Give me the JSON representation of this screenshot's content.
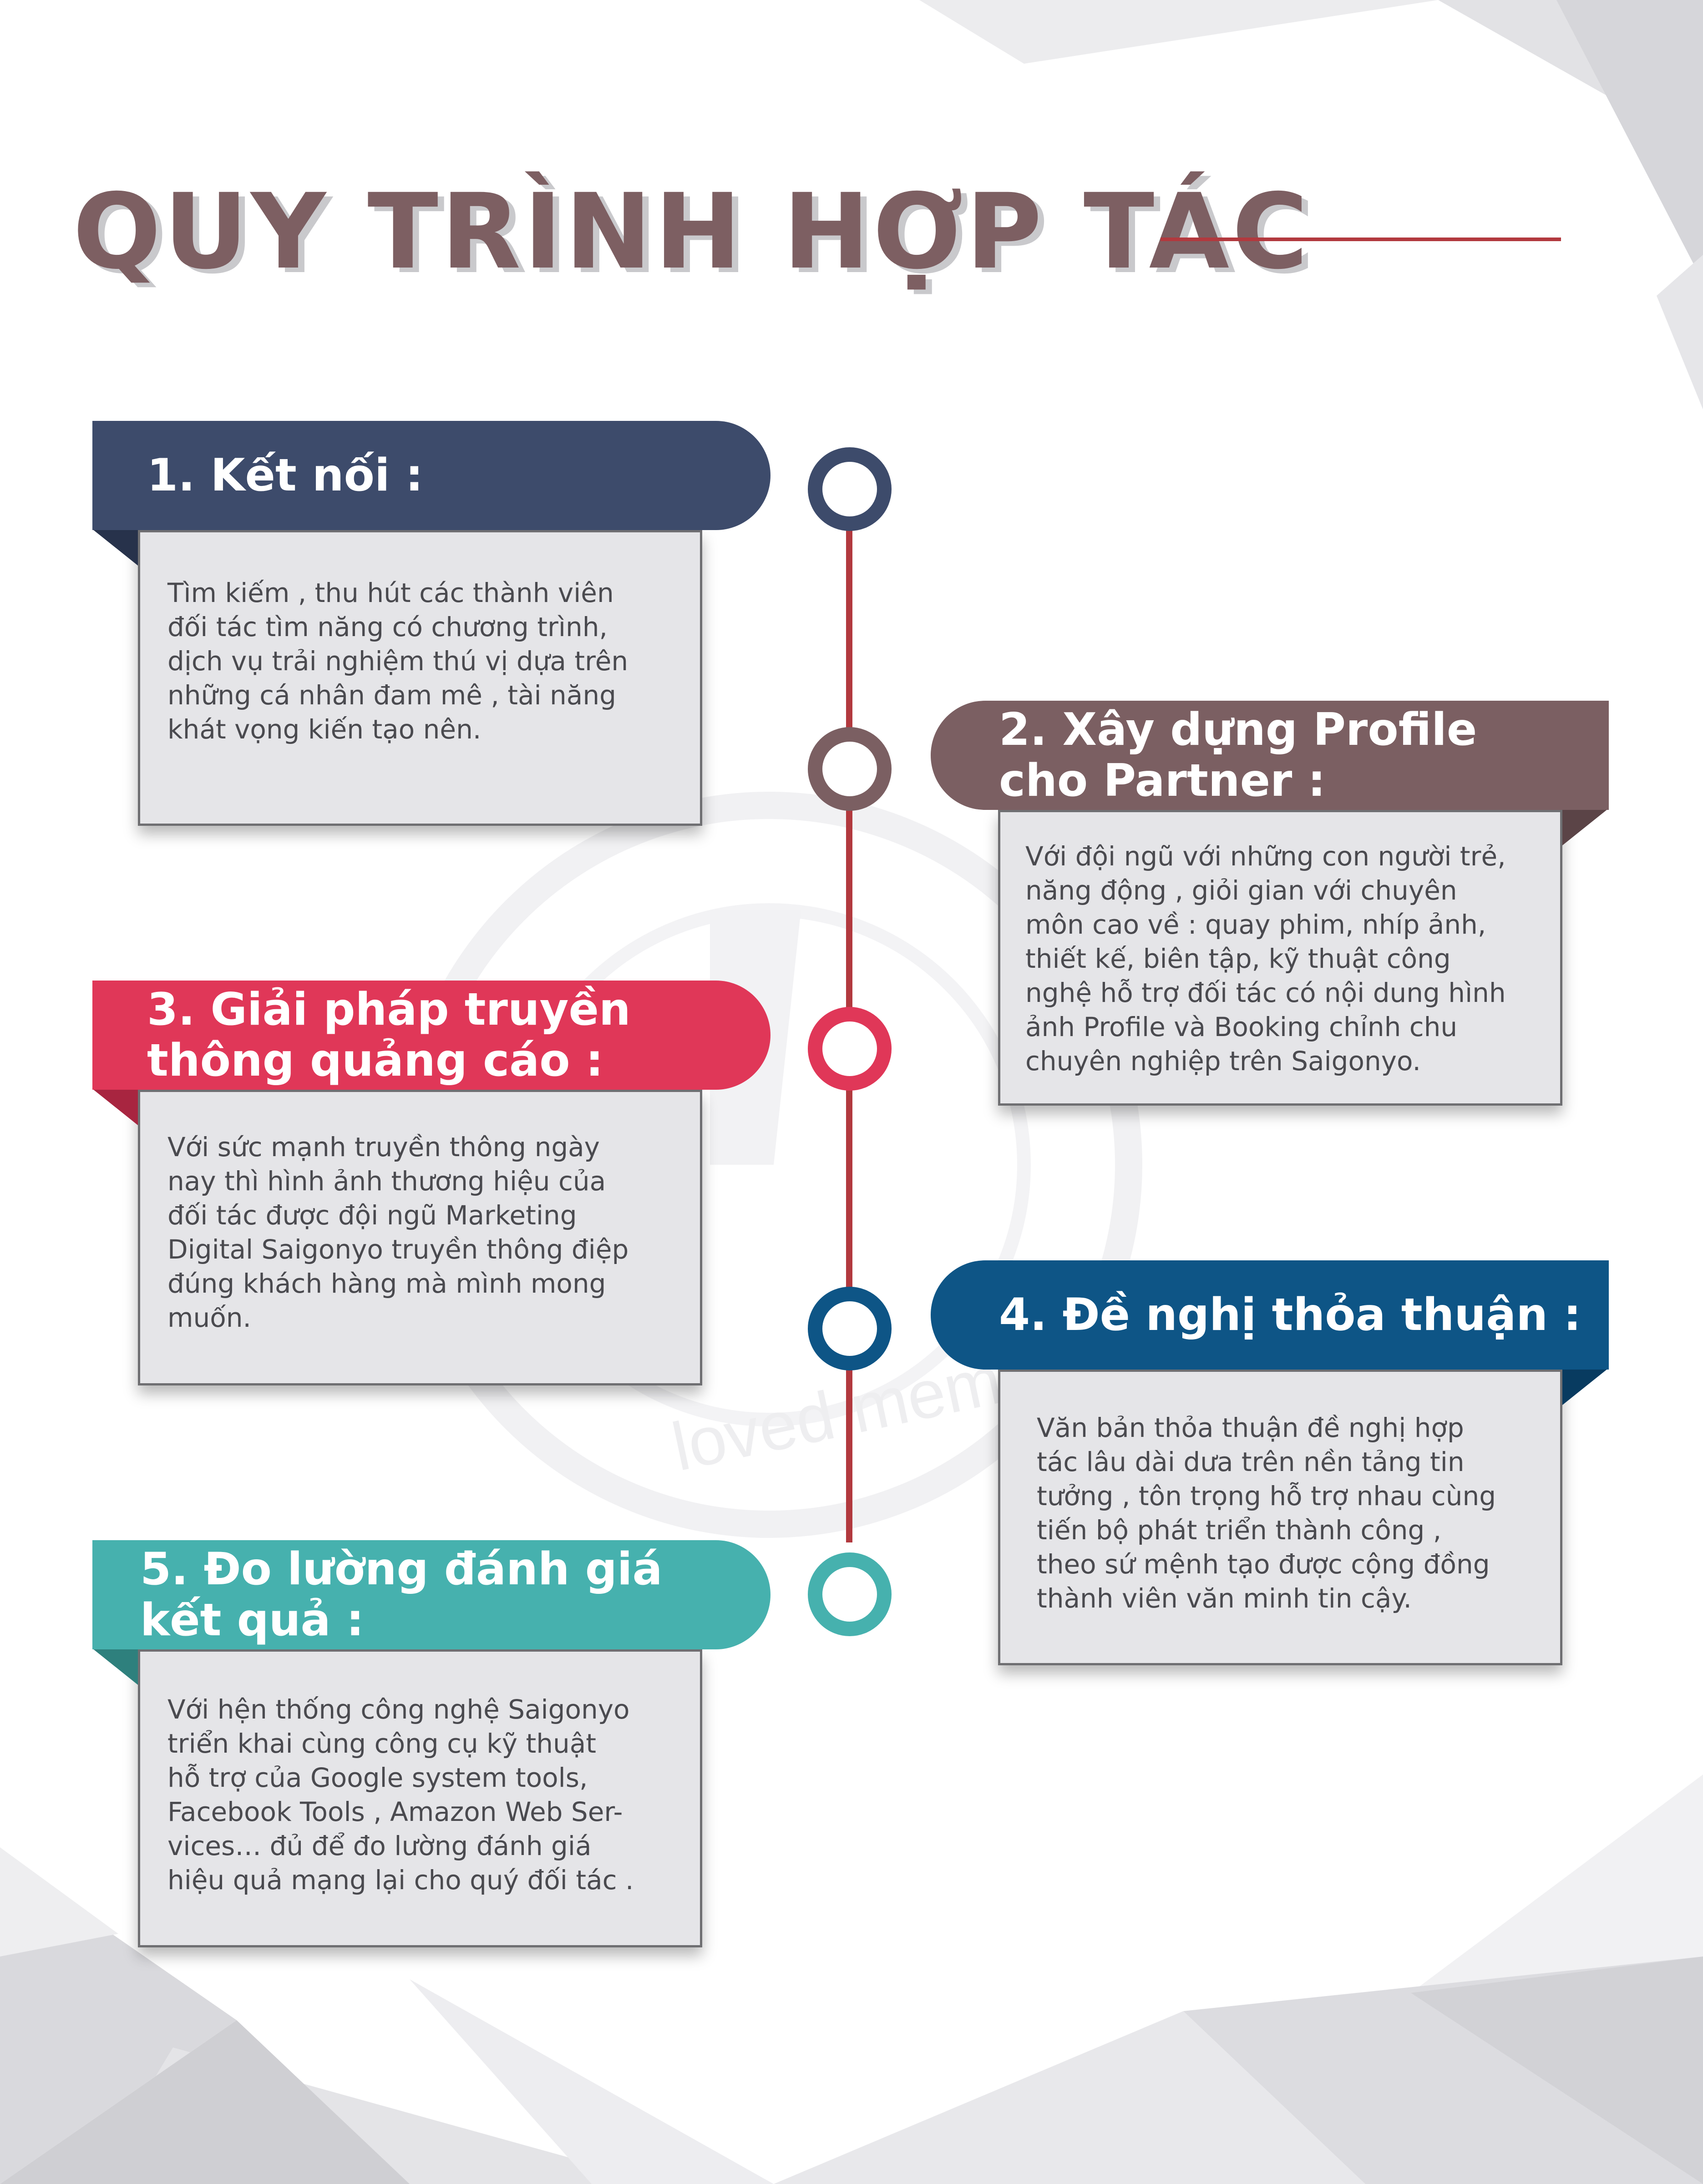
{
  "page": {
    "title": "QUY TRÌNH HỢP TÁC",
    "watermark": "loved memb",
    "colors": {
      "title": "#7d5f62",
      "timeline": "#b2393e",
      "step1": "#3d4b6b",
      "step2": "#7b5f62",
      "step3": "#e03758",
      "step4": "#0e5586",
      "step5": "#46b1ae",
      "box_bg": "#e5e5e8"
    }
  },
  "steps": [
    {
      "title": "1. Kết nối :",
      "body": "Tìm kiếm , thu hút các thành viên\nđối tác tìm năng có chương trình,\ndịch vụ trải nghiệm thú vị dựa trên\nnhững cá nhân đam mê , tài năng\nkhát vọng kiến tạo nên."
    },
    {
      "title": "2. Xây dựng Profile\ncho Partner :",
      "body": " Với đội ngũ với những con người trẻ,\nnăng động , giỏi gian với chuyên\nmôn cao về : quay phim, nhíp ảnh,\nthiết kế, biên tập, kỹ thuật công\nnghệ hỗ trợ đối tác có nội dung hình\nảnh Profile và Booking chỉnh chu\nchuyên nghiệp trên Saigonyo."
    },
    {
      "title": "3. Giải pháp truyền\nthông quảng cáo :",
      "body": "Với sức mạnh truyền thông ngày\nnay thì hình ảnh thương hiệu của\nđối tác được đội ngũ Marketing\nDigital Saigonyo truyền thông điệp\nđúng khách hàng mà mình mong\nmuốn."
    },
    {
      "title": "4. Đề nghị thỏa thuận :",
      "body": "Văn bản thỏa thuận đề nghị hợp\ntác lâu dài dưa trên nền tảng tin\ntưởng , tôn trọng hỗ trợ nhau cùng\ntiến bộ phát triển thành công ,\ntheo sứ mệnh tạo được cộng đồng\nthành viên văn minh tin cậy."
    },
    {
      "title": "5.  Đo lường đánh giá\nkết quả :",
      "body": "Với hện thống công nghệ Saigonyo\ntriển khai cùng công cụ kỹ  thuật\nhỗ trợ của Google  system tools,\nFacebook Tools , Amazon Web Ser-\nvices… đủ để đo lường đánh giá\nhiệu quả mạng lại cho quý đối tác ."
    }
  ]
}
